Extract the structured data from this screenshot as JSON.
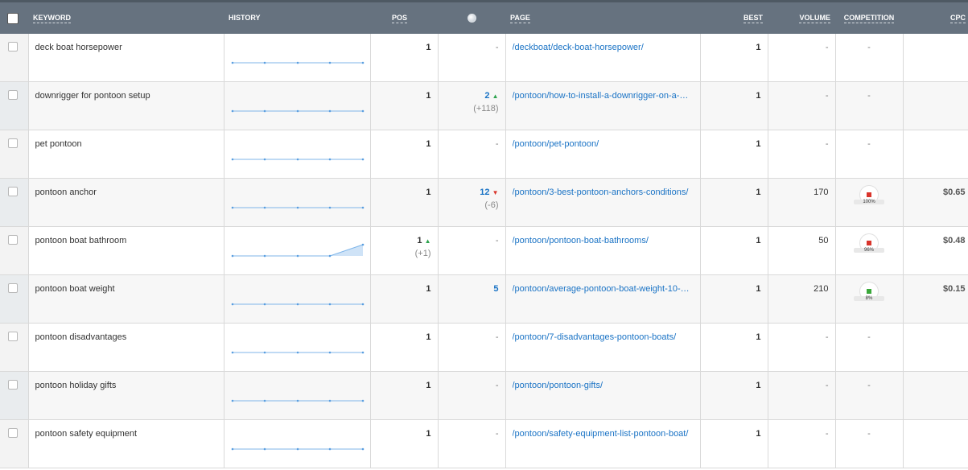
{
  "header": {
    "keyword": "KEYWORD",
    "history": "HISTORY",
    "pos": "POS",
    "page": "PAGE",
    "best": "BEST",
    "volume": "VOLUME",
    "competition": "COMPETITION",
    "cpc": "CPC"
  },
  "rows": [
    {
      "keyword": "deck boat horsepower",
      "pos": "1",
      "gpos": "-",
      "page": "/deckboat/deck-boat-horsepower/",
      "best": "1",
      "volume": "-",
      "cpc": "",
      "competition": "-"
    },
    {
      "keyword": "downrigger for pontoon setup",
      "pos": "1",
      "gpos": "2",
      "gchange": "(+118)",
      "page": "/pontoon/how-to-install-a-downrigger-on-a-…",
      "best": "1",
      "volume": "-",
      "cpc": "",
      "competition": "-"
    },
    {
      "keyword": "pet pontoon",
      "pos": "1",
      "gpos": "-",
      "page": "/pontoon/pet-pontoon/",
      "best": "1",
      "volume": "-",
      "cpc": "",
      "competition": "-"
    },
    {
      "keyword": "pontoon anchor",
      "pos": "1",
      "gpos": "12",
      "gchange": "(-6)",
      "page": "/pontoon/3-best-pontoon-anchors-conditions/",
      "best": "1",
      "volume": "170",
      "cpc": "$0.65",
      "competition": "100%",
      "comp_color": "#d9342b"
    },
    {
      "keyword": "pontoon boat bathroom",
      "pos": "1",
      "poschange": "(+1)",
      "gpos": "-",
      "page": "/pontoon/pontoon-boat-bathrooms/",
      "best": "1",
      "volume": "50",
      "cpc": "$0.48",
      "competition": "96%",
      "comp_color": "#d9342b"
    },
    {
      "keyword": "pontoon boat weight",
      "pos": "1",
      "gpos": "5",
      "page": "/pontoon/average-pontoon-boat-weight-10-…",
      "best": "1",
      "volume": "210",
      "cpc": "$0.15",
      "competition": "8%",
      "comp_color": "#3aa83a"
    },
    {
      "keyword": "pontoon disadvantages",
      "pos": "1",
      "gpos": "-",
      "page": "/pontoon/7-disadvantages-pontoon-boats/",
      "best": "1",
      "volume": "-",
      "cpc": "",
      "competition": "-"
    },
    {
      "keyword": "pontoon holiday gifts",
      "pos": "1",
      "gpos": "-",
      "page": "/pontoon/pontoon-gifts/",
      "best": "1",
      "volume": "-",
      "cpc": "",
      "competition": "-"
    },
    {
      "keyword": "pontoon safety equipment",
      "pos": "1",
      "gpos": "-",
      "page": "/pontoon/safety-equipment-list-pontoon-boat/",
      "best": "1",
      "volume": "-",
      "cpc": "",
      "competition": "-"
    }
  ],
  "colors": {
    "header_bg": "#66727f",
    "link": "#1a73c5",
    "up": "#2ea44f",
    "down": "#d9342b"
  }
}
